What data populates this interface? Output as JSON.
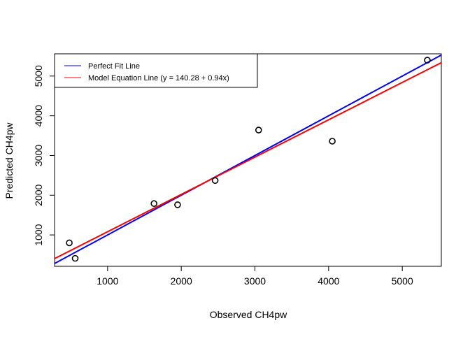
{
  "chart_data": {
    "type": "scatter",
    "title": "",
    "xlabel": "Observed CH4pw",
    "ylabel": "Predicted CH4pw",
    "xlim": [
      280,
      5530
    ],
    "ylim": [
      210,
      5560
    ],
    "xticks": [
      1000,
      2000,
      3000,
      4000,
      5000
    ],
    "yticks": [
      1000,
      2000,
      3000,
      4000,
      5000
    ],
    "grid": false,
    "legend_position": "top-left",
    "points": [
      {
        "x": 480,
        "y": 800
      },
      {
        "x": 560,
        "y": 410
      },
      {
        "x": 1630,
        "y": 1790
      },
      {
        "x": 1950,
        "y": 1760
      },
      {
        "x": 2460,
        "y": 2370
      },
      {
        "x": 3050,
        "y": 3640
      },
      {
        "x": 4050,
        "y": 3360
      },
      {
        "x": 5340,
        "y": 5400
      }
    ],
    "lines": [
      {
        "name": "Perfect Fit Line",
        "intercept": 0,
        "slope": 1,
        "color": "#0000ff"
      },
      {
        "name": "Model Equation Line (y = 140.28 + 0.94x)",
        "intercept": 140.28,
        "slope": 0.94,
        "color": "#ff0000"
      }
    ]
  }
}
